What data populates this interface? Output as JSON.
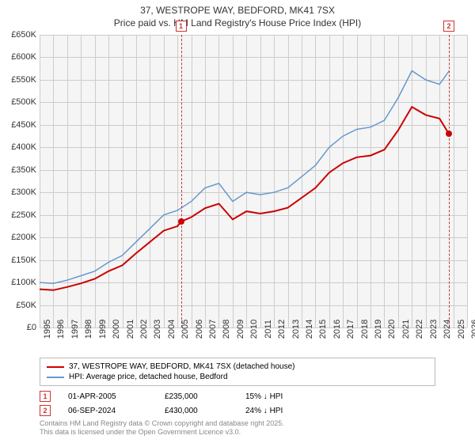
{
  "title": {
    "line1": "37, WESTROPE WAY, BEDFORD, MK41 7SX",
    "line2": "Price paid vs. HM Land Registry's House Price Index (HPI)"
  },
  "chart": {
    "type": "line",
    "background_color": "#f5f5f5",
    "grid_color": "#cccccc",
    "ylim": [
      0,
      650000
    ],
    "ytick_step": 50000,
    "y_ticks": [
      "£0",
      "£50K",
      "£100K",
      "£150K",
      "£200K",
      "£250K",
      "£300K",
      "£350K",
      "£400K",
      "£450K",
      "£500K",
      "£550K",
      "£600K",
      "£650K"
    ],
    "xlim": [
      1995,
      2026
    ],
    "x_ticks": [
      1995,
      1996,
      1997,
      1998,
      1999,
      2000,
      2001,
      2002,
      2003,
      2004,
      2005,
      2006,
      2007,
      2008,
      2009,
      2010,
      2011,
      2012,
      2013,
      2014,
      2015,
      2016,
      2017,
      2018,
      2019,
      2020,
      2021,
      2022,
      2023,
      2024,
      2025,
      2026
    ],
    "series": {
      "hpi": {
        "label": "HPI: Average price, detached house, Bedford",
        "color": "#6699cc",
        "line_width": 1.5,
        "points": [
          [
            1995,
            100000
          ],
          [
            1996,
            98000
          ],
          [
            1997,
            105000
          ],
          [
            1998,
            115000
          ],
          [
            1999,
            125000
          ],
          [
            2000,
            145000
          ],
          [
            2001,
            160000
          ],
          [
            2002,
            190000
          ],
          [
            2003,
            220000
          ],
          [
            2004,
            250000
          ],
          [
            2005,
            260000
          ],
          [
            2006,
            280000
          ],
          [
            2007,
            310000
          ],
          [
            2008,
            320000
          ],
          [
            2009,
            280000
          ],
          [
            2010,
            300000
          ],
          [
            2011,
            295000
          ],
          [
            2012,
            300000
          ],
          [
            2013,
            310000
          ],
          [
            2014,
            335000
          ],
          [
            2015,
            360000
          ],
          [
            2016,
            400000
          ],
          [
            2017,
            425000
          ],
          [
            2018,
            440000
          ],
          [
            2019,
            445000
          ],
          [
            2020,
            460000
          ],
          [
            2021,
            510000
          ],
          [
            2022,
            570000
          ],
          [
            2023,
            550000
          ],
          [
            2024,
            540000
          ],
          [
            2024.7,
            570000
          ]
        ]
      },
      "property": {
        "label": "37, WESTROPE WAY, BEDFORD, MK41 7SX (detached house)",
        "color": "#cc0000",
        "line_width": 2,
        "points": [
          [
            1995,
            85000
          ],
          [
            1996,
            83000
          ],
          [
            1997,
            90000
          ],
          [
            1998,
            98000
          ],
          [
            1999,
            108000
          ],
          [
            2000,
            125000
          ],
          [
            2001,
            138000
          ],
          [
            2002,
            165000
          ],
          [
            2003,
            190000
          ],
          [
            2004,
            215000
          ],
          [
            2005,
            225000
          ],
          [
            2005.25,
            235000
          ],
          [
            2006,
            245000
          ],
          [
            2007,
            265000
          ],
          [
            2008,
            275000
          ],
          [
            2009,
            240000
          ],
          [
            2010,
            258000
          ],
          [
            2011,
            253000
          ],
          [
            2012,
            258000
          ],
          [
            2013,
            266000
          ],
          [
            2014,
            288000
          ],
          [
            2015,
            310000
          ],
          [
            2016,
            344000
          ],
          [
            2017,
            365000
          ],
          [
            2018,
            378000
          ],
          [
            2019,
            382000
          ],
          [
            2020,
            395000
          ],
          [
            2021,
            438000
          ],
          [
            2022,
            490000
          ],
          [
            2023,
            472000
          ],
          [
            2024,
            464000
          ],
          [
            2024.68,
            430000
          ]
        ]
      }
    },
    "markers": [
      {
        "num": "1",
        "year": 2005.25,
        "price": 235000
      },
      {
        "num": "2",
        "year": 2024.68,
        "price": 430000
      }
    ]
  },
  "events": [
    {
      "num": "1",
      "date": "01-APR-2005",
      "price": "£235,000",
      "pct_note": "15% ↓ HPI"
    },
    {
      "num": "2",
      "date": "06-SEP-2024",
      "price": "£430,000",
      "pct_note": "24% ↓ HPI"
    }
  ],
  "legend": {
    "items": [
      {
        "key": "property",
        "label": "37, WESTROPE WAY, BEDFORD, MK41 7SX (detached house)",
        "color": "#cc0000"
      },
      {
        "key": "hpi",
        "label": "HPI: Average price, detached house, Bedford",
        "color": "#6699cc"
      }
    ]
  },
  "footer": {
    "line1": "Contains HM Land Registry data © Crown copyright and database right 2025.",
    "line2": "This data is licensed under the Open Government Licence v3.0."
  }
}
